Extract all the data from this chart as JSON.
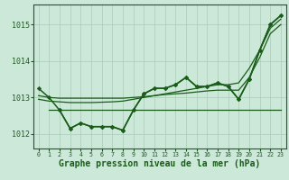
{
  "title": "Graphe pression niveau de la mer (hPa)",
  "background_color": "#cce8d8",
  "grid_color": "#aaccb8",
  "line_color": "#1a5c1a",
  "xlim": [
    -0.5,
    23.5
  ],
  "ylim": [
    1011.6,
    1015.55
  ],
  "yticks": [
    1012,
    1013,
    1014,
    1015
  ],
  "ylabel_fontsize": 6.0,
  "xlabel_fontsize": 7.0,
  "series": [
    {
      "x": [
        0,
        1,
        2,
        3,
        4,
        5,
        6,
        7,
        8,
        9,
        10,
        11,
        12,
        13,
        14,
        15,
        16,
        17,
        18,
        19,
        20,
        21,
        22,
        23
      ],
      "y": [
        1013.25,
        1013.0,
        1012.65,
        1012.15,
        1012.3,
        1012.2,
        1012.2,
        1012.2,
        1012.1,
        1012.65,
        1013.1,
        1013.25,
        1013.25,
        1013.35,
        1013.55,
        1013.3,
        1013.3,
        1013.4,
        1013.3,
        1012.95,
        1013.5,
        1014.3,
        1015.0,
        1015.25
      ],
      "marker": "D",
      "markersize": 2.2,
      "linewidth": 1.1,
      "linestyle": "-"
    },
    {
      "x": [
        0,
        1,
        2,
        3,
        4,
        5,
        6,
        7,
        8,
        9,
        10,
        11,
        12,
        13,
        14,
        15,
        16,
        17,
        18,
        19,
        20,
        21,
        22,
        23
      ],
      "y": [
        1012.95,
        1012.9,
        1012.88,
        1012.86,
        1012.86,
        1012.86,
        1012.87,
        1012.88,
        1012.9,
        1012.95,
        1013.0,
        1013.05,
        1013.1,
        1013.15,
        1013.2,
        1013.25,
        1013.3,
        1013.35,
        1013.35,
        1013.4,
        1013.8,
        1014.3,
        1014.9,
        1015.15
      ],
      "marker": null,
      "markersize": 0,
      "linewidth": 0.9,
      "linestyle": "-"
    },
    {
      "x": [
        1,
        2,
        3,
        4,
        5,
        6,
        7,
        8,
        9,
        10,
        11,
        12,
        13,
        14,
        15,
        16,
        17,
        18,
        19,
        20,
        21,
        22,
        23
      ],
      "y": [
        1012.65,
        1012.65,
        1012.65,
        1012.65,
        1012.65,
        1012.65,
        1012.65,
        1012.65,
        1012.65,
        1012.65,
        1012.65,
        1012.65,
        1012.65,
        1012.65,
        1012.65,
        1012.65,
        1012.65,
        1012.65,
        1012.65,
        1012.65,
        1012.65,
        1012.65,
        1012.65
      ],
      "marker": null,
      "markersize": 0,
      "linewidth": 0.9,
      "linestyle": "-"
    },
    {
      "x": [
        0,
        1,
        2,
        3,
        4,
        5,
        6,
        7,
        8,
        9,
        10,
        11,
        12,
        13,
        14,
        15,
        16,
        17,
        18,
        19,
        20,
        21,
        22,
        23
      ],
      "y": [
        1013.05,
        1013.0,
        1012.98,
        1012.98,
        1012.98,
        1012.98,
        1012.98,
        1012.98,
        1012.98,
        1013.0,
        1013.02,
        1013.05,
        1013.08,
        1013.1,
        1013.12,
        1013.15,
        1013.18,
        1013.2,
        1013.2,
        1013.2,
        1013.55,
        1014.1,
        1014.75,
        1015.0
      ],
      "marker": null,
      "markersize": 0,
      "linewidth": 0.9,
      "linestyle": "-"
    },
    {
      "x": [
        2,
        3,
        4,
        5,
        6,
        7,
        8,
        9,
        10,
        11,
        12,
        13,
        14,
        15,
        16,
        17,
        18,
        19,
        20,
        21,
        22,
        23
      ],
      "y": [
        1012.65,
        1012.15,
        1012.3,
        1012.2,
        1012.2,
        1012.2,
        1012.1,
        1012.65,
        1013.1,
        1013.25,
        1013.25,
        1013.35,
        1013.55,
        1013.3,
        1013.3,
        1013.4,
        1013.3,
        1012.95,
        1013.5,
        1014.3,
        1015.0,
        1015.25
      ],
      "marker": "D",
      "markersize": 2.2,
      "linewidth": 1.1,
      "linestyle": "-"
    }
  ]
}
